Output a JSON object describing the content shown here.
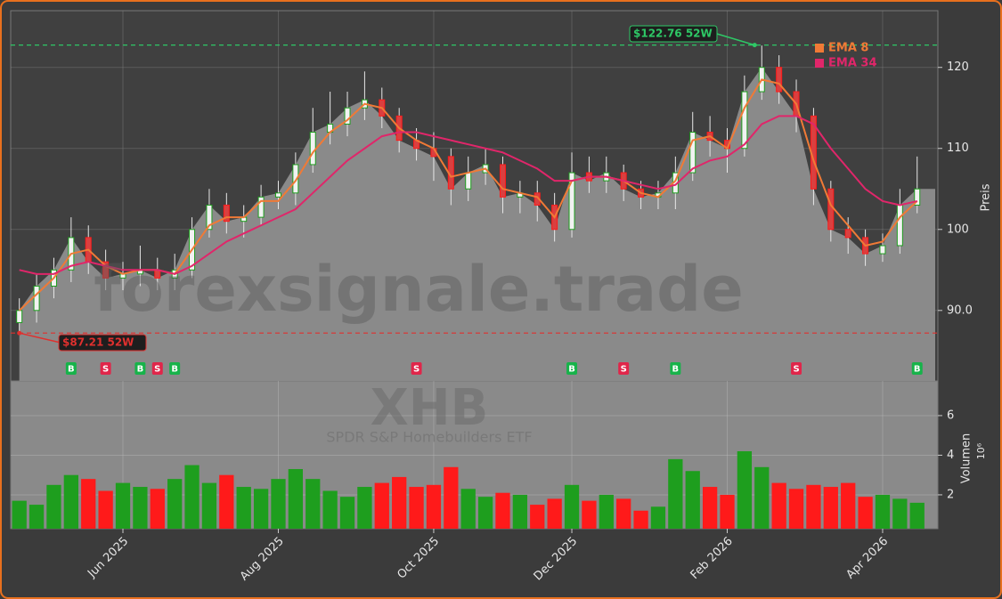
{
  "chart_data": {
    "type": "candlestick",
    "watermark": "forexsignale.trade",
    "title": "XHB",
    "subtitle": "SPDR S&P Homebuilders ETF",
    "ylabel": "Preis",
    "ylim": [
      81.3,
      127.0
    ],
    "yticks": [
      {
        "value": 90,
        "label": "90.0"
      },
      100,
      110,
      120
    ],
    "grid": true,
    "legend": "upper right",
    "up_color": "#1e9e1e",
    "down_color": "#ff1a1a",
    "area_color": "#8a8a8a",
    "categories": [
      null,
      null,
      null,
      null,
      null,
      null,
      "Jun 2025",
      null,
      null,
      null,
      null,
      null,
      null,
      null,
      null,
      "Aug 2025",
      null,
      null,
      null,
      null,
      null,
      null,
      null,
      null,
      "Oct 2025",
      null,
      null,
      null,
      null,
      null,
      null,
      null,
      "Dec 2025",
      null,
      null,
      null,
      null,
      null,
      null,
      null,
      null,
      "Feb 2026",
      null,
      null,
      null,
      null,
      null,
      null,
      null,
      null,
      "Apr 2026",
      null,
      null
    ],
    "open": [
      88.5,
      90,
      93,
      95,
      99,
      96,
      94,
      94.5,
      95,
      94,
      95,
      100,
      103,
      101,
      101.5,
      104,
      104.5,
      108,
      112,
      113,
      115,
      116,
      114,
      111,
      110,
      109,
      105,
      107,
      108,
      104,
      104.5,
      103,
      100,
      107,
      106,
      107,
      105,
      104,
      104.5,
      107,
      112,
      111,
      110,
      117,
      120,
      117,
      114,
      105,
      100,
      99,
      97,
      98,
      103
    ],
    "high": [
      91.5,
      94.5,
      96.5,
      101.5,
      100.5,
      97.5,
      96,
      98,
      96.5,
      97,
      101.5,
      105,
      104.5,
      103,
      105.5,
      106,
      109.5,
      115,
      117,
      117,
      119.5,
      117.5,
      115,
      112.5,
      112,
      110,
      109,
      110,
      109,
      106,
      106,
      104.5,
      109.5,
      109,
      109,
      108,
      106,
      106,
      109,
      114.5,
      114,
      112.5,
      119,
      122.7,
      121.5,
      118.5,
      115,
      106,
      101.5,
      100,
      99.5,
      105,
      109
    ],
    "low": [
      87.3,
      88.5,
      91.5,
      93.5,
      94.5,
      92.5,
      92.5,
      93,
      92.5,
      92.5,
      94,
      99,
      99.5,
      99,
      100.5,
      102.5,
      103,
      107,
      110.5,
      111.5,
      113.5,
      112.5,
      109.5,
      108.5,
      106,
      103,
      103.5,
      105.5,
      102,
      102,
      101,
      98.5,
      99,
      104.5,
      104.5,
      103.5,
      102.5,
      102.5,
      102.5,
      106,
      109,
      107,
      109,
      116,
      115.5,
      112,
      103,
      98.5,
      97,
      95.5,
      96,
      97,
      102
    ],
    "close": [
      90,
      93,
      95,
      99,
      96,
      94,
      94.5,
      95,
      94,
      95,
      100,
      103,
      101,
      101.5,
      104,
      104.5,
      108,
      112,
      113,
      115,
      116,
      114,
      111,
      110,
      109,
      105,
      107,
      108,
      104,
      104.5,
      103,
      100,
      107,
      106,
      107,
      105,
      104,
      104.5,
      107,
      112,
      111,
      110,
      117,
      120,
      117,
      114,
      105,
      100,
      99,
      97,
      98,
      103,
      105
    ],
    "series": [
      {
        "name": "EMA 8",
        "color": "#f07a36",
        "values": [
          90,
          92,
          94,
          97,
          97.5,
          95.5,
          94.5,
          95,
          95,
          94.5,
          97.5,
          100.5,
          101.5,
          101.5,
          103.5,
          103.5,
          106,
          109.5,
          112,
          113.5,
          115.5,
          115,
          112.5,
          111,
          110,
          106.5,
          107,
          107.5,
          105,
          104.5,
          104,
          101.5,
          106,
          106.5,
          106.5,
          106,
          104.5,
          104,
          106,
          111,
          111.5,
          110,
          115,
          118.5,
          118,
          115.5,
          108.5,
          103,
          100.5,
          98,
          98.5,
          101.5,
          103.5
        ]
      },
      {
        "name": "EMA 34",
        "color": "#e0266a",
        "values": [
          95,
          94.5,
          94.5,
          95.5,
          96,
          95.5,
          95,
          95,
          95,
          94.5,
          95.5,
          97,
          98.5,
          99.5,
          100.5,
          101.5,
          102.5,
          104.5,
          106.5,
          108.5,
          110,
          111.5,
          112,
          112,
          111.5,
          111,
          110.5,
          110,
          109.5,
          108.5,
          107.5,
          106,
          106,
          106.5,
          106.5,
          106,
          105.5,
          105,
          105.5,
          107.5,
          108.5,
          109,
          110.5,
          113,
          114,
          114,
          113,
          110,
          107.5,
          105,
          103.5,
          103,
          103.5
        ]
      }
    ],
    "reference_lines": [
      {
        "value": 122.76,
        "label": "$122.76 52W",
        "color": "#2ec866"
      },
      {
        "value": 87.21,
        "label": "$87.21 52W",
        "color": "#e0302e"
      }
    ],
    "signals": [
      {
        "index": 3,
        "label": "B"
      },
      {
        "index": 5,
        "label": "S"
      },
      {
        "index": 7,
        "label": "B"
      },
      {
        "index": 8,
        "label": "S"
      },
      {
        "index": 9,
        "label": "B"
      },
      {
        "index": 23,
        "label": "S"
      },
      {
        "index": 32,
        "label": "B"
      },
      {
        "index": 35,
        "label": "S"
      },
      {
        "index": 38,
        "label": "B"
      },
      {
        "index": 45,
        "label": "S"
      },
      {
        "index": 52,
        "label": "B"
      }
    ],
    "volume": {
      "ylabel": "Volumen",
      "exponent": "10⁶",
      "ylim": [
        0.29,
        7.75
      ],
      "yticks": [
        2,
        4,
        6
      ],
      "values": [
        1.7,
        1.5,
        2.5,
        3.0,
        2.8,
        2.2,
        2.6,
        2.4,
        2.3,
        2.8,
        3.5,
        2.6,
        3.0,
        2.4,
        2.3,
        2.8,
        3.3,
        2.8,
        2.2,
        1.9,
        2.4,
        2.6,
        2.9,
        2.4,
        2.5,
        3.4,
        2.3,
        1.9,
        2.1,
        2.0,
        1.5,
        1.8,
        2.5,
        1.7,
        2.0,
        1.8,
        1.2,
        1.4,
        3.8,
        3.2,
        2.4,
        2.0,
        4.2,
        3.4,
        2.6,
        2.3,
        2.5,
        2.4,
        2.6,
        1.9,
        2.0,
        1.8,
        1.6
      ]
    }
  }
}
